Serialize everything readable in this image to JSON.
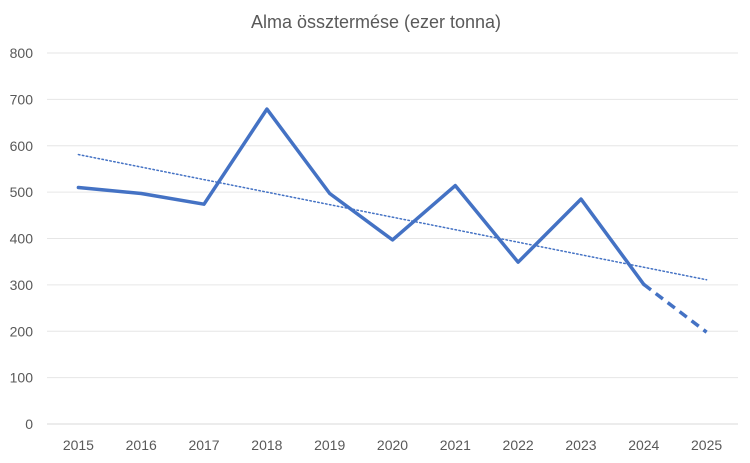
{
  "chart_data": {
    "type": "line",
    "title": "Alma össztermése (ezer tonna)",
    "xlabel": "",
    "ylabel": "",
    "categories": [
      "2015",
      "2016",
      "2017",
      "2018",
      "2019",
      "2020",
      "2021",
      "2022",
      "2023",
      "2024",
      "2025"
    ],
    "series": [
      {
        "values": [
          510,
          497,
          474,
          679,
          497,
          397,
          514,
          349,
          485,
          301,
          198
        ],
        "color": "#4472C4",
        "forecast_from_index": 9
      }
    ],
    "trendline": {
      "type": "linear",
      "start": 581,
      "end": 311,
      "color": "#4472C4",
      "style": "dotted"
    },
    "ylim": [
      0,
      800
    ],
    "yticks": [
      0,
      100,
      200,
      300,
      400,
      500,
      600,
      700,
      800
    ],
    "grid": true,
    "legend": "none"
  }
}
